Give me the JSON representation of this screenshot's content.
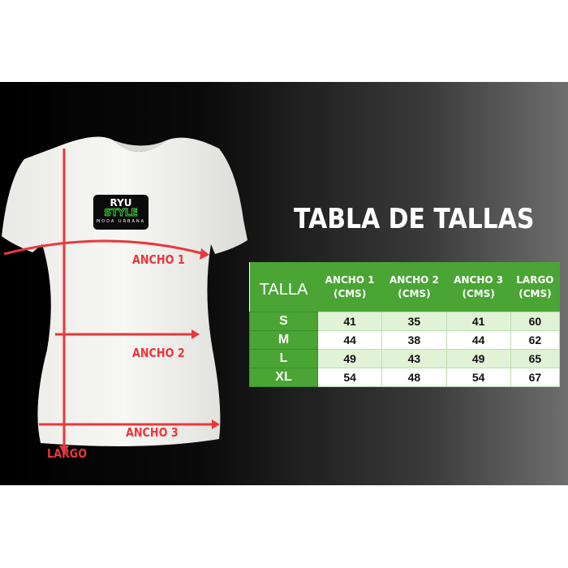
{
  "title": "TABLA DE TALLAS",
  "logo": {
    "line1": "RYU",
    "line2": "STYLE",
    "line3": "MODA URBANA"
  },
  "labels": {
    "ancho1": "ANCHO 1",
    "ancho2": "ANCHO 2",
    "ancho3": "ANCHO 3",
    "largo": "LARGO"
  },
  "colors": {
    "header_green": "#4aa534",
    "row_alt": "#e0f3d6",
    "arrow_red": "#e8383c"
  },
  "table": {
    "headers": [
      {
        "l1": "TALLA"
      },
      {
        "l1": "ANCHO 1",
        "l2": "(CMS)"
      },
      {
        "l1": "ANCHO 2",
        "l2": "(CMS)"
      },
      {
        "l1": "ANCHO 3",
        "l2": "(CMS)"
      },
      {
        "l1": "LARGO",
        "l2": "(CMS)"
      }
    ],
    "rows": [
      {
        "size": "S",
        "v": [
          "41",
          "35",
          "41",
          "60"
        ]
      },
      {
        "size": "M",
        "v": [
          "44",
          "38",
          "44",
          "62"
        ]
      },
      {
        "size": "L",
        "v": [
          "49",
          "43",
          "49",
          "65"
        ]
      },
      {
        "size": "XL",
        "v": [
          "54",
          "48",
          "54",
          "67"
        ]
      }
    ]
  }
}
